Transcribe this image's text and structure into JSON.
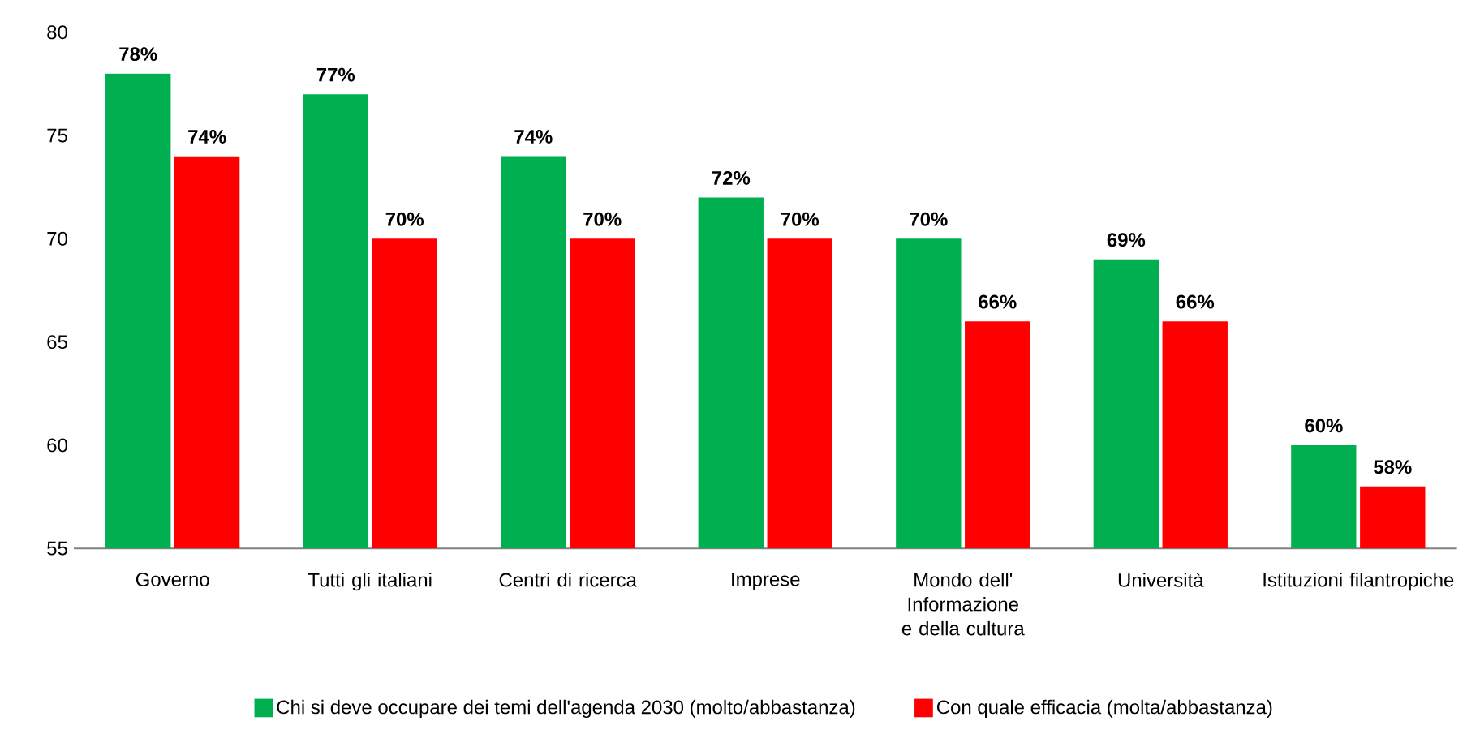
{
  "chart_data": {
    "type": "bar",
    "categories": [
      "Governo",
      "Tutti gli italiani",
      "Centri di ricerca",
      "Imprese",
      "Mondo dell' Informazione e della cultura",
      "Università",
      "Istituzioni filantropiche"
    ],
    "series": [
      {
        "name": "Chi si deve occupare dei temi dell'agenda 2030 (molto/abbastanza)",
        "color": "#00b050",
        "values": [
          78,
          77,
          74,
          72,
          70,
          69,
          60
        ],
        "value_labels": [
          "78%",
          "77%",
          "74%",
          "72%",
          "70%",
          "69%",
          "60%"
        ]
      },
      {
        "name": "Con quale efficacia (molta/abbastanza)",
        "color": "#ff0000",
        "values": [
          74,
          70,
          70,
          70,
          66,
          66,
          58
        ],
        "value_labels": [
          "74%",
          "70%",
          "70%",
          "70%",
          "66%",
          "66%",
          "58%"
        ]
      }
    ],
    "ylim": [
      55,
      80
    ],
    "yticks": [
      55,
      60,
      65,
      70,
      75,
      80
    ],
    "grid": false,
    "legend": "bottom"
  }
}
